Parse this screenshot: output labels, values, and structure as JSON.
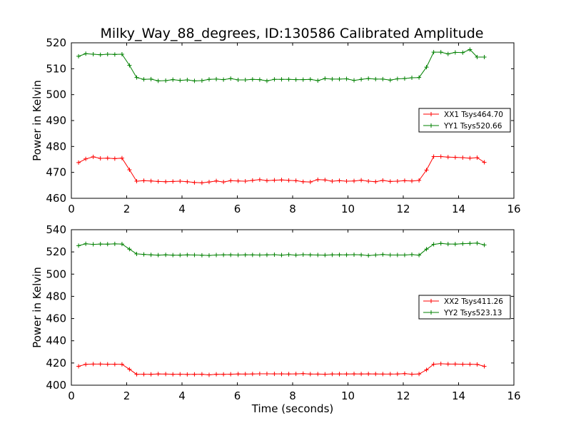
{
  "title": "Milky_Way_88_degrees, ID:130586 Calibrated Amplitude",
  "chart_data": [
    {
      "type": "line",
      "title": "Milky_Way_88_degrees, ID:130586 Calibrated Amplitude",
      "xlabel": "",
      "ylabel": "Power in Kelvin",
      "xlim": [
        0,
        16
      ],
      "ylim": [
        460,
        520
      ],
      "xticks": [
        0,
        2,
        4,
        6,
        8,
        10,
        12,
        14,
        16
      ],
      "yticks": [
        460,
        470,
        480,
        490,
        500,
        510,
        520
      ],
      "grid": false,
      "legend_position": "center-right",
      "x": [
        0.26,
        0.52,
        0.79,
        1.05,
        1.31,
        1.57,
        1.83,
        2.1,
        2.36,
        2.62,
        2.88,
        3.14,
        3.41,
        3.67,
        3.93,
        4.19,
        4.45,
        4.72,
        4.98,
        5.24,
        5.5,
        5.76,
        6.03,
        6.29,
        6.55,
        6.81,
        7.07,
        7.34,
        7.6,
        7.86,
        8.12,
        8.38,
        8.64,
        8.91,
        9.17,
        9.43,
        9.69,
        9.95,
        10.22,
        10.48,
        10.74,
        11.0,
        11.26,
        11.53,
        11.79,
        12.05,
        12.31,
        12.57,
        12.84,
        13.1,
        13.36,
        13.62,
        13.88,
        14.15,
        14.41,
        14.67,
        14.93
      ],
      "series": [
        {
          "name": "XX1 Tsys464.70",
          "color": "#ff0000",
          "values": [
            473.8,
            475.2,
            476.0,
            475.4,
            475.5,
            475.3,
            475.5,
            471.0,
            466.6,
            466.8,
            466.7,
            466.5,
            466.4,
            466.5,
            466.6,
            466.4,
            466.1,
            466.0,
            466.3,
            466.7,
            466.3,
            466.8,
            466.7,
            466.6,
            466.9,
            467.2,
            466.8,
            467.0,
            467.1,
            466.9,
            466.8,
            466.4,
            466.3,
            467.2,
            467.1,
            466.6,
            466.8,
            466.6,
            466.7,
            467.0,
            466.6,
            466.4,
            466.9,
            466.5,
            466.6,
            466.8,
            466.7,
            466.9,
            470.9,
            476.1,
            476.1,
            475.9,
            475.8,
            475.7,
            475.5,
            475.7,
            473.9
          ]
        },
        {
          "name": "YY1 Tsys520.66",
          "color": "#008000",
          "values": [
            514.8,
            515.8,
            515.6,
            515.4,
            515.6,
            515.5,
            515.6,
            511.3,
            506.6,
            505.9,
            506.0,
            505.3,
            505.4,
            505.8,
            505.5,
            505.7,
            505.3,
            505.4,
            505.9,
            506.0,
            505.8,
            506.2,
            505.7,
            505.7,
            505.9,
            505.8,
            505.3,
            505.9,
            505.9,
            505.9,
            505.8,
            505.8,
            505.9,
            505.4,
            506.2,
            506.0,
            506.0,
            506.1,
            505.5,
            505.9,
            506.2,
            506.0,
            506.0,
            505.6,
            506.1,
            506.2,
            506.5,
            506.6,
            510.6,
            516.4,
            516.4,
            515.7,
            516.3,
            516.2,
            517.4,
            514.5,
            514.5
          ]
        }
      ]
    },
    {
      "type": "line",
      "title": "",
      "xlabel": "Time (seconds)",
      "ylabel": "Power in Kelvin",
      "xlim": [
        0,
        16
      ],
      "ylim": [
        400,
        540
      ],
      "xticks": [
        0,
        2,
        4,
        6,
        8,
        10,
        12,
        14,
        16
      ],
      "yticks": [
        400,
        420,
        440,
        460,
        480,
        500,
        520,
        540
      ],
      "grid": false,
      "legend_position": "center-right",
      "x": [
        0.26,
        0.52,
        0.79,
        1.05,
        1.31,
        1.57,
        1.83,
        2.1,
        2.36,
        2.62,
        2.88,
        3.14,
        3.41,
        3.67,
        3.93,
        4.19,
        4.45,
        4.72,
        4.98,
        5.24,
        5.5,
        5.76,
        6.03,
        6.29,
        6.55,
        6.81,
        7.07,
        7.34,
        7.6,
        7.86,
        8.12,
        8.38,
        8.64,
        8.91,
        9.17,
        9.43,
        9.69,
        9.95,
        10.22,
        10.48,
        10.74,
        11.0,
        11.26,
        11.53,
        11.79,
        12.05,
        12.31,
        12.57,
        12.84,
        13.1,
        13.36,
        13.62,
        13.88,
        14.15,
        14.41,
        14.67,
        14.93
      ],
      "series": [
        {
          "name": "XX2 Tsys411.26",
          "color": "#ff0000",
          "values": [
            417.0,
            418.8,
            419.0,
            419.0,
            418.9,
            418.9,
            418.8,
            414.3,
            409.8,
            409.9,
            409.8,
            410.1,
            410.0,
            409.8,
            409.9,
            409.7,
            409.8,
            409.9,
            409.3,
            409.9,
            409.8,
            409.9,
            410.1,
            410.0,
            410.1,
            410.3,
            410.3,
            410.2,
            410.2,
            410.1,
            410.2,
            410.4,
            410.0,
            410.0,
            409.9,
            410.1,
            410.1,
            410.1,
            410.2,
            410.1,
            410.2,
            410.1,
            410.0,
            410.0,
            410.1,
            410.4,
            409.9,
            410.1,
            413.8,
            418.9,
            419.3,
            419.0,
            419.0,
            418.9,
            418.9,
            418.7,
            417.0
          ]
        },
        {
          "name": "YY2 Tsys523.13",
          "color": "#008000",
          "values": [
            525.6,
            527.3,
            526.8,
            527.1,
            527.0,
            527.2,
            527.1,
            522.5,
            518.2,
            517.8,
            517.4,
            517.1,
            517.4,
            517.1,
            517.1,
            517.3,
            517.2,
            517.0,
            516.8,
            517.2,
            517.3,
            517.3,
            517.2,
            517.3,
            517.3,
            517.2,
            517.3,
            517.5,
            517.1,
            517.6,
            517.1,
            517.5,
            517.3,
            517.2,
            517.1,
            517.3,
            517.4,
            517.3,
            517.5,
            517.3,
            516.7,
            517.2,
            517.7,
            517.2,
            517.2,
            517.2,
            517.6,
            517.1,
            522.5,
            526.8,
            527.6,
            527.1,
            527.0,
            527.4,
            527.6,
            527.9,
            526.3
          ]
        }
      ]
    }
  ]
}
